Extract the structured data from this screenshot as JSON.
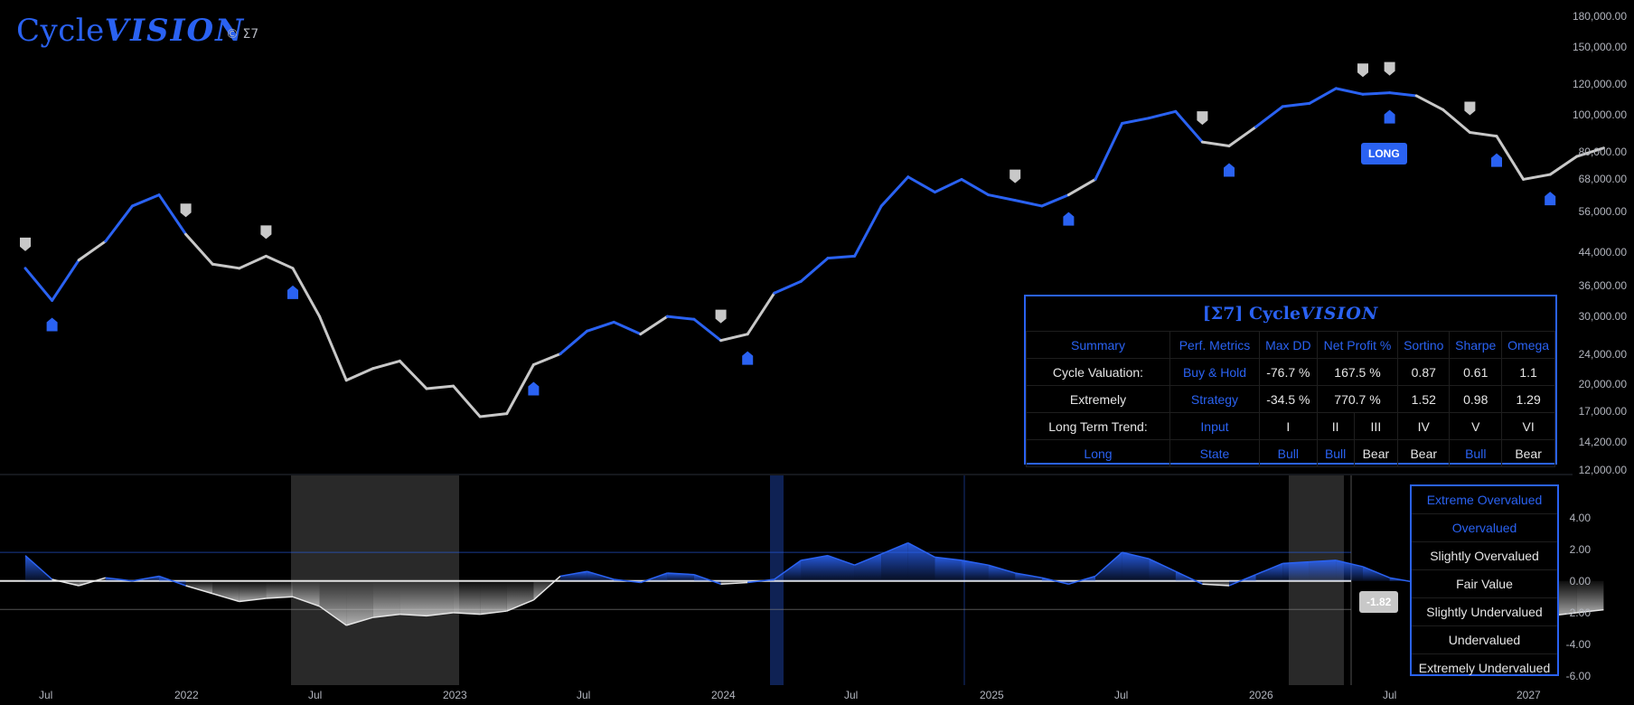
{
  "header": {
    "logo_main": "Cycle",
    "logo_italic": "VISION",
    "copyright": "© Σ7"
  },
  "colors": {
    "bull": "#2a62f2",
    "bear": "#c8c8c8",
    "background": "#000000",
    "shade": "#2e2e2e"
  },
  "price_axis": [
    "180,000.00",
    "150,000.00",
    "120,000.00",
    "100,000.00",
    "80,000.00",
    "68,000.00",
    "56,000.00",
    "44,000.00",
    "36,000.00",
    "30,000.00",
    "24,000.00",
    "20,000.00",
    "17,000.00",
    "14,200.00",
    "12,000.00"
  ],
  "osc_axis": [
    "4.00",
    "2.00",
    "0.00",
    "-2.00",
    "-4.00",
    "-6.00"
  ],
  "time_axis": [
    "Jul",
    "2022",
    "Jul",
    "2023",
    "Jul",
    "2024",
    "Jul",
    "2025",
    "Jul",
    "2026",
    "Jul",
    "2027"
  ],
  "current_tag": "LONG",
  "osc_value_tag": "-1.82",
  "perf_table": {
    "title_prefix": "[Σ7] Cycle",
    "title_italic": "VISION",
    "header": [
      "Summary",
      "Perf. Metrics",
      "Max DD",
      "Net Profit %",
      "Sortino",
      "Sharpe",
      "Omega"
    ],
    "row1": [
      "Cycle Valuation:",
      "Buy & Hold",
      "-76.7 %",
      "167.5 %",
      "0.87",
      "0.61",
      "1.1"
    ],
    "row2": [
      "Extremely",
      "Strategy",
      "-34.5 %",
      "770.7 %",
      "1.52",
      "0.98",
      "1.29"
    ],
    "row3": [
      "Long Term Trend:",
      "Input",
      "I",
      "II",
      "III",
      "IV",
      "V",
      "VI"
    ],
    "row4": [
      "Long",
      "State",
      "Bull",
      "Bull",
      "Bear",
      "Bear",
      "Bull",
      "Bear"
    ]
  },
  "valuation_legend": [
    "Extreme Overvalued",
    "Overvalued",
    "Slightly Overvalued",
    "Fair Value",
    "Slightly Undervalued",
    "Undervalued",
    "Extremely Undervalued"
  ],
  "chart_data": [
    {
      "type": "line",
      "title": "",
      "yscale": "log",
      "ylim": [
        12000,
        180000
      ],
      "x": [
        "2021-06",
        "2021-07",
        "2021-08",
        "2021-09",
        "2021-10",
        "2021-11",
        "2021-12",
        "2022-01",
        "2022-02",
        "2022-03",
        "2022-04",
        "2022-05",
        "2022-06",
        "2022-07",
        "2022-08",
        "2022-09",
        "2022-10",
        "2022-11",
        "2022-12",
        "2023-01",
        "2023-02",
        "2023-03",
        "2023-04",
        "2023-05",
        "2023-06",
        "2023-07",
        "2023-08",
        "2023-09",
        "2023-10",
        "2023-11",
        "2023-12",
        "2024-01",
        "2024-02",
        "2024-03",
        "2024-04",
        "2024-05",
        "2024-06",
        "2024-07",
        "2024-08",
        "2024-09",
        "2024-10",
        "2024-11",
        "2024-12",
        "2025-01",
        "2025-02",
        "2025-03",
        "2025-04",
        "2025-05",
        "2025-06",
        "2025-07",
        "2025-08",
        "2025-09",
        "2025-10",
        "2025-11",
        "2025-12",
        "2026-01",
        "2026-02",
        "2026-03",
        "2026-04",
        "2026-05"
      ],
      "series": [
        {
          "values": [
            40000,
            33000,
            42000,
            47000,
            58000,
            62000,
            49000,
            41000,
            40000,
            43000,
            40000,
            30000,
            20500,
            22000,
            23000,
            19500,
            19800,
            16500,
            16800,
            22500,
            24000,
            27500,
            29000,
            27000,
            30000,
            29500,
            26000,
            27000,
            34500,
            37000,
            42500,
            43000,
            58000,
            69000,
            63000,
            68000,
            62000,
            60000,
            58000,
            62000,
            68000,
            95000,
            98000,
            102000,
            85000,
            83000,
            93000,
            105000,
            107000,
            117000,
            113000,
            114000,
            112000,
            103000,
            90000,
            88000,
            68000,
            70000,
            78000,
            82000
          ]
        }
      ],
      "markers_top": [
        "2021-06",
        "2021-12",
        "2022-03",
        "2023-08",
        "2024-07",
        "2025-02",
        "2025-08",
        "2025-09",
        "2025-12"
      ],
      "markers_bottom": [
        "2021-07",
        "2022-04",
        "2023-01",
        "2023-09",
        "2024-09",
        "2025-03",
        "2025-09",
        "2026-01",
        "2026-03"
      ]
    },
    {
      "type": "area",
      "ylim": [
        -6,
        5
      ],
      "x": [
        "2021-06",
        "2021-07",
        "2021-08",
        "2021-09",
        "2021-10",
        "2021-11",
        "2021-12",
        "2022-01",
        "2022-02",
        "2022-03",
        "2022-04",
        "2022-05",
        "2022-06",
        "2022-07",
        "2022-08",
        "2022-09",
        "2022-10",
        "2022-11",
        "2022-12",
        "2023-01",
        "2023-02",
        "2023-03",
        "2023-04",
        "2023-05",
        "2023-06",
        "2023-07",
        "2023-08",
        "2023-09",
        "2023-10",
        "2023-11",
        "2023-12",
        "2024-01",
        "2024-02",
        "2024-03",
        "2024-04",
        "2024-05",
        "2024-06",
        "2024-07",
        "2024-08",
        "2024-09",
        "2024-10",
        "2024-11",
        "2024-12",
        "2025-01",
        "2025-02",
        "2025-03",
        "2025-04",
        "2025-05",
        "2025-06",
        "2025-07",
        "2025-08",
        "2025-09",
        "2025-10",
        "2025-11",
        "2025-12",
        "2026-01",
        "2026-02",
        "2026-03",
        "2026-04",
        "2026-05"
      ],
      "series": [
        {
          "values": [
            1.6,
            0.1,
            -0.3,
            0.2,
            0.0,
            0.3,
            -0.3,
            -0.8,
            -1.3,
            -1.1,
            -1.0,
            -1.6,
            -2.8,
            -2.3,
            -2.1,
            -2.2,
            -2.0,
            -2.1,
            -1.9,
            -1.2,
            0.3,
            0.6,
            0.1,
            -0.1,
            0.5,
            0.4,
            -0.2,
            -0.1,
            0.1,
            1.3,
            1.6,
            1.0,
            1.7,
            2.4,
            1.5,
            1.3,
            1.0,
            0.5,
            0.2,
            -0.2,
            0.3,
            1.8,
            1.4,
            0.6,
            -0.2,
            -0.3,
            0.4,
            1.1,
            1.2,
            1.3,
            0.9,
            0.2,
            -0.1,
            -1.4,
            -1.5,
            -1.6,
            -2.3,
            -2.2,
            -2.0,
            -1.82
          ]
        }
      ],
      "hlines": [
        0,
        1.8,
        -1.8
      ]
    }
  ]
}
